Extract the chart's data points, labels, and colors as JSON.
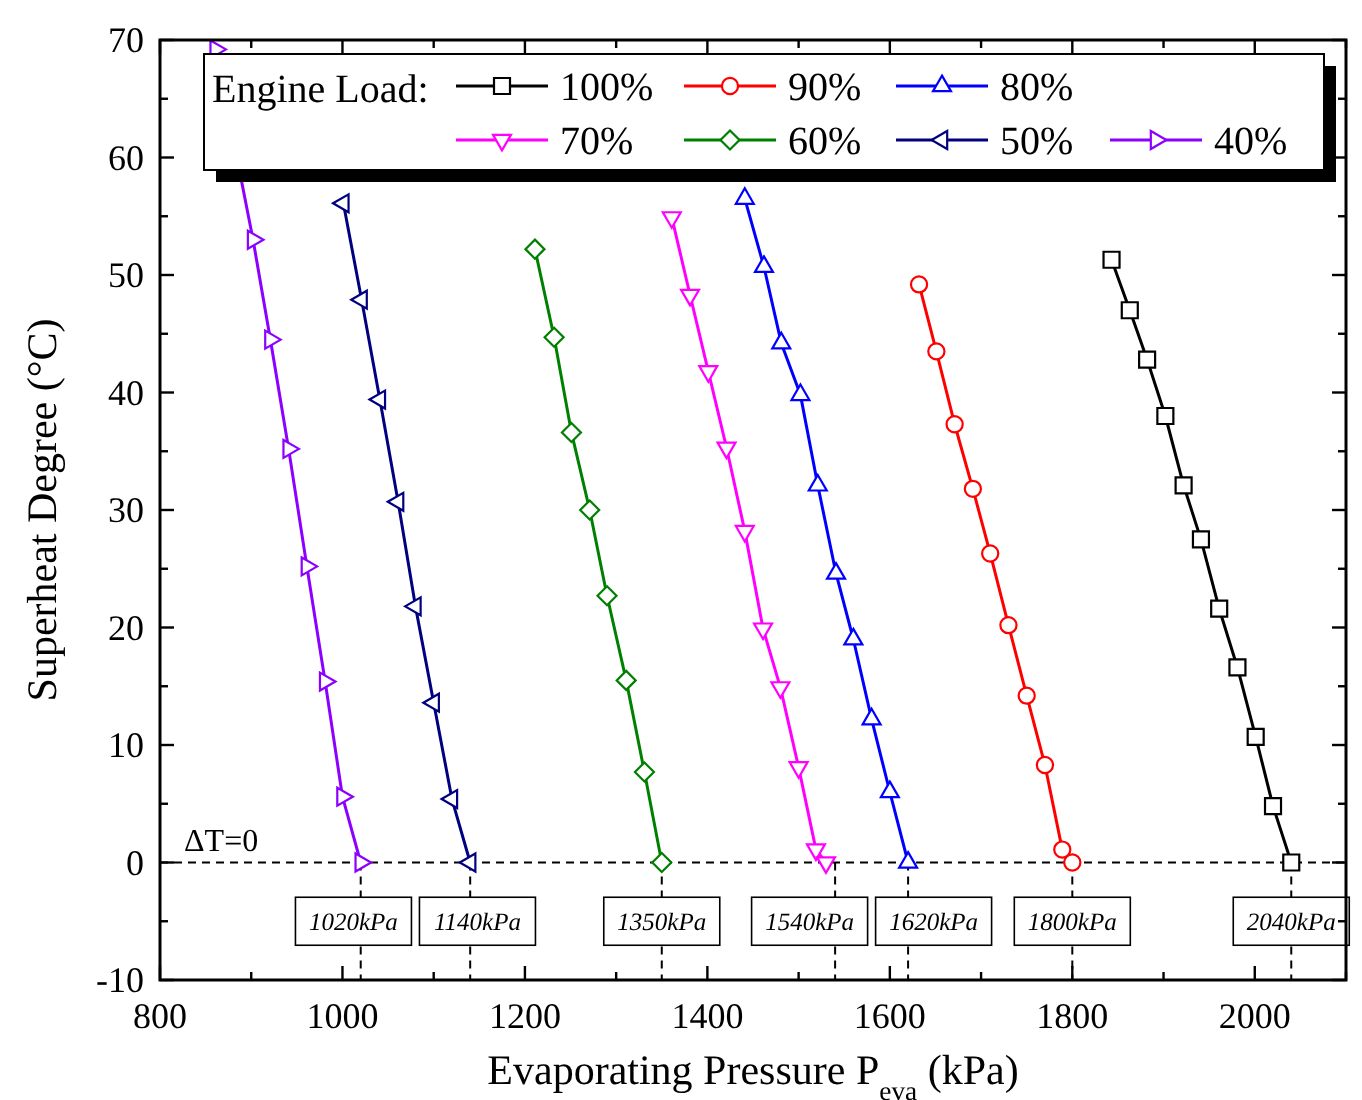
{
  "chart_data": {
    "type": "line",
    "xlabel": "Evaporating Pressure P$_{eva}$ (kPa)",
    "ylabel": "Superheat Degree (°C)",
    "legend_title": "Engine Load:",
    "legend": "top",
    "grid": false,
    "xlim": [
      800,
      2100
    ],
    "xticks": [
      800,
      {
        "value": 900,
        "label": null
      },
      1000,
      {
        "value": 1100,
        "label": null
      },
      1200,
      {
        "value": 1300,
        "label": null
      },
      1400,
      {
        "value": 1500,
        "label": null
      },
      1600,
      {
        "value": 1700,
        "label": null
      },
      1800,
      {
        "value": 1900,
        "label": null
      },
      2000,
      {
        "value": 2100,
        "label": null
      }
    ],
    "ylim": [
      -10,
      70
    ],
    "yticks": [
      -10,
      {
        "value": -5,
        "label": null
      },
      0,
      {
        "value": 5,
        "label": null
      },
      10,
      {
        "value": 15,
        "label": null
      },
      20,
      {
        "value": 25,
        "label": null
      },
      30,
      {
        "value": 35,
        "label": null
      },
      40,
      {
        "value": 45,
        "label": null
      },
      50,
      {
        "value": 55,
        "label": null
      },
      60,
      {
        "value": 65,
        "label": null
      },
      70
    ],
    "line_style": "solid",
    "series": [
      {
        "name": "100%",
        "color": "#000000",
        "marker": "square",
        "x": [
          1843,
          1863,
          1882,
          1902,
          1922,
          1941,
          1961,
          1981,
          2001,
          2020,
          2040
        ],
        "values": [
          51.3,
          47.0,
          42.8,
          38.0,
          32.1,
          27.5,
          21.6,
          16.6,
          10.7,
          4.8,
          0
        ]
      },
      {
        "name": "90%",
        "color": "#ff0000",
        "marker": "circle",
        "x": [
          1632,
          1651,
          1671,
          1691,
          1710,
          1730,
          1750,
          1770,
          1789,
          1800
        ],
        "values": [
          49.2,
          43.5,
          37.3,
          31.8,
          26.3,
          20.2,
          14.2,
          8.3,
          1.1,
          0
        ]
      },
      {
        "name": "80%",
        "color": "#0000ff",
        "marker": "triangle",
        "x": [
          1441,
          1462,
          1481,
          1502,
          1521,
          1541,
          1560,
          1580,
          1600,
          1620
        ],
        "values": [
          56.5,
          50.7,
          44.2,
          39.8,
          32.1,
          24.6,
          19.0,
          12.2,
          6.0,
          0
        ]
      },
      {
        "name": "70%",
        "color": "#ff00ff",
        "marker": "triangle-down",
        "x": [
          1361,
          1381,
          1401,
          1421,
          1441,
          1461,
          1480,
          1500,
          1519,
          1530
        ],
        "values": [
          54.9,
          48.3,
          41.8,
          35.3,
          28.2,
          19.9,
          14.9,
          8.1,
          1.1,
          0
        ]
      },
      {
        "name": "60%",
        "color": "#008000",
        "marker": "diamond",
        "x": [
          1211,
          1232,
          1251,
          1271,
          1290,
          1311,
          1331,
          1350
        ],
        "values": [
          52.2,
          44.7,
          36.6,
          30.0,
          22.7,
          15.5,
          7.7,
          0
        ]
      },
      {
        "name": "50%",
        "color": "#000080",
        "marker": "triangle-left",
        "x": [
          1001,
          1021,
          1041,
          1061,
          1080,
          1100,
          1120,
          1140
        ],
        "values": [
          56.1,
          47.9,
          39.4,
          30.7,
          21.8,
          13.6,
          5.4,
          0
        ]
      },
      {
        "name": "40%",
        "color": "#8b00ff",
        "marker": "triangle-right",
        "x": [
          861,
          902,
          921,
          941,
          961,
          981,
          1000,
          1020
        ],
        "values": [
          69.2,
          53.0,
          44.5,
          35.2,
          25.2,
          15.4,
          5.6,
          0
        ]
      }
    ],
    "ref_lines": [
      {
        "axis": "y",
        "value": 0,
        "label": "ΔT=0",
        "line_style": "dashed",
        "color": "#000000"
      },
      {
        "axis": "x",
        "value": 1020,
        "label": "1020kPa",
        "line_style": "dashed",
        "color": "#000000"
      },
      {
        "axis": "x",
        "value": 1140,
        "label": "1140kPa",
        "line_style": "dashed",
        "color": "#000000"
      },
      {
        "axis": "x",
        "value": 1350,
        "label": "1350kPa",
        "line_style": "dashed",
        "color": "#000000"
      },
      {
        "axis": "x",
        "value": 1540,
        "label": "1540kPa",
        "line_style": "dashed",
        "color": "#000000"
      },
      {
        "axis": "x",
        "value": 1620,
        "label": "1620kPa",
        "line_style": "dashed",
        "color": "#000000"
      },
      {
        "axis": "x",
        "value": 1800,
        "label": "1800kPa",
        "line_style": "dashed",
        "color": "#000000"
      },
      {
        "axis": "x",
        "value": 2040,
        "label": "2040kPa",
        "line_style": "dashed",
        "color": "#000000"
      }
    ]
  }
}
